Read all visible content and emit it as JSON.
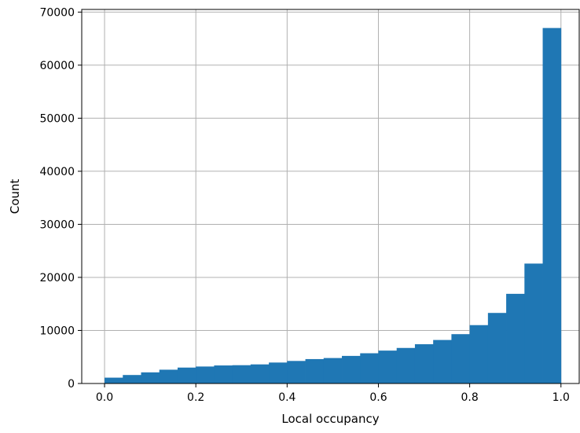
{
  "chart_data": {
    "type": "bar",
    "title": "",
    "xlabel": "Local occupancy",
    "ylabel": "Count",
    "xlim": [
      -0.05,
      1.04
    ],
    "ylim": [
      0,
      70500
    ],
    "x_ticks": [
      0.0,
      0.2,
      0.4,
      0.6,
      0.8,
      1.0
    ],
    "x_tick_labels": [
      "0.0",
      "0.2",
      "0.4",
      "0.6",
      "0.8",
      "1.0"
    ],
    "y_ticks": [
      0,
      10000,
      20000,
      30000,
      40000,
      50000,
      60000,
      70000
    ],
    "y_tick_labels": [
      "0",
      "10000",
      "20000",
      "30000",
      "40000",
      "50000",
      "60000",
      "70000"
    ],
    "grid": true,
    "bar_color": "#1f77b4",
    "bin_edges": [
      0.0,
      0.04,
      0.08,
      0.12,
      0.16,
      0.2,
      0.24,
      0.28,
      0.32,
      0.36,
      0.4,
      0.44,
      0.48,
      0.52,
      0.56,
      0.6,
      0.64,
      0.68,
      0.72,
      0.76,
      0.8,
      0.84,
      0.88,
      0.92,
      0.96,
      1.0
    ],
    "values": [
      1100,
      1600,
      2100,
      2600,
      3000,
      3200,
      3400,
      3450,
      3600,
      3950,
      4250,
      4600,
      4800,
      5200,
      5700,
      6200,
      6700,
      7400,
      8200,
      9300,
      11000,
      13300,
      16900,
      22600,
      67000
    ]
  }
}
